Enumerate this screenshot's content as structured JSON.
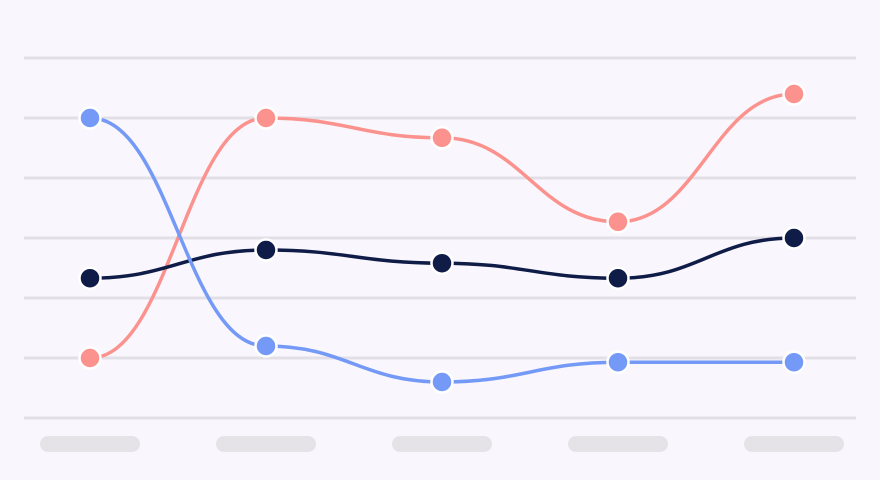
{
  "chart_data": {
    "type": "line",
    "title": "",
    "xlabel": "",
    "ylabel": "",
    "categories": [
      "",
      "",
      "",
      "",
      ""
    ],
    "ylim": [
      0,
      6
    ],
    "grid": true,
    "legend": "none",
    "series": [
      {
        "color": "#fb928e",
        "values": [
          1.0,
          5.0,
          4.67,
          3.27,
          5.4
        ]
      },
      {
        "color": "#101c48",
        "values": [
          2.33,
          2.8,
          2.58,
          2.33,
          3.0
        ]
      },
      {
        "color": "#7499f6",
        "values": [
          5.0,
          1.2,
          0.6,
          0.93,
          0.93
        ]
      }
    ]
  },
  "colors": {
    "background": "#f9f7fd",
    "gridline": "#e2e0e6",
    "placeholder_label": "#e5e3e7",
    "marker_stroke": "#ffffff"
  }
}
